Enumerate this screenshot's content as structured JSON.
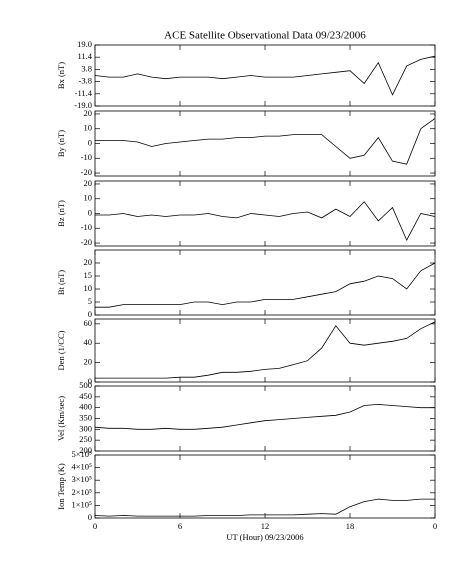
{
  "chart_data": [
    {
      "type": "line",
      "title": "ACE Satellite Observational Data   09/23/2006",
      "ylabel": "Bx (nT)",
      "color": "#000000",
      "x": [
        0,
        1,
        2,
        3,
        4,
        5,
        6,
        7,
        8,
        9,
        10,
        11,
        12,
        13,
        14,
        15,
        16,
        17,
        18,
        19,
        20,
        21,
        22,
        23,
        24
      ],
      "values": [
        0,
        -1,
        -1,
        1,
        -1,
        -2,
        -1,
        -1,
        -1,
        -2,
        -1,
        0,
        -1,
        -1,
        -1,
        0,
        1,
        2,
        3,
        -5,
        8,
        -12,
        6,
        10,
        12
      ],
      "xlim": [
        0,
        24
      ],
      "ylim": [
        -19,
        19
      ],
      "yticks": [
        {
          "value": -19,
          "label": "-19.0"
        },
        -11.4,
        -3.8,
        3.8,
        11.4,
        {
          "value": 19,
          "label": "19.0"
        }
      ]
    },
    {
      "type": "line",
      "ylabel": "By (nT)",
      "color": "#000000",
      "x": [
        0,
        1,
        2,
        3,
        4,
        5,
        6,
        7,
        8,
        9,
        10,
        11,
        12,
        13,
        14,
        15,
        16,
        17,
        18,
        19,
        20,
        21,
        22,
        23,
        24
      ],
      "values": [
        2,
        2,
        2,
        1,
        -2,
        0,
        1,
        2,
        3,
        3,
        4,
        4,
        5,
        5,
        6,
        6,
        6,
        -2,
        -10,
        -8,
        4,
        -12,
        -14,
        10,
        17
      ],
      "xlim": [
        0,
        24
      ],
      "ylim": [
        -22,
        22
      ],
      "yticks": [
        -20,
        -10,
        0,
        10,
        20
      ]
    },
    {
      "type": "line",
      "ylabel": "Bz (nT)",
      "color": "#000000",
      "x": [
        0,
        1,
        2,
        3,
        4,
        5,
        6,
        7,
        8,
        9,
        10,
        11,
        12,
        13,
        14,
        15,
        16,
        17,
        18,
        19,
        20,
        21,
        22,
        23,
        24
      ],
      "values": [
        -1,
        -1,
        0,
        -2,
        -1,
        -2,
        -1,
        -1,
        0,
        -2,
        -3,
        0,
        -1,
        -2,
        0,
        1,
        -3,
        3,
        -2,
        8,
        -5,
        4,
        -18,
        0,
        -2
      ],
      "xlim": [
        0,
        24
      ],
      "ylim": [
        -22,
        22
      ],
      "yticks": [
        -20,
        -10,
        0,
        10,
        20
      ]
    },
    {
      "type": "line",
      "ylabel": "Bt (nT)",
      "color": "#000000",
      "x": [
        0,
        1,
        2,
        3,
        4,
        5,
        6,
        7,
        8,
        9,
        10,
        11,
        12,
        13,
        14,
        15,
        16,
        17,
        18,
        19,
        20,
        21,
        22,
        23,
        24
      ],
      "values": [
        3,
        3,
        4,
        4,
        4,
        4,
        4,
        5,
        5,
        4,
        5,
        5,
        6,
        6,
        6,
        7,
        8,
        9,
        12,
        13,
        15,
        14,
        10,
        17,
        20
      ],
      "xlim": [
        0,
        24
      ],
      "ylim": [
        0,
        25
      ],
      "yticks": [
        0,
        5,
        10,
        15,
        20
      ]
    },
    {
      "type": "line",
      "ylabel": "Den (1/CC)",
      "color": "#000000",
      "x": [
        0,
        1,
        2,
        3,
        4,
        5,
        6,
        7,
        8,
        9,
        10,
        11,
        12,
        13,
        14,
        15,
        16,
        17,
        18,
        19,
        20,
        21,
        22,
        23,
        24
      ],
      "values": [
        4,
        4,
        4,
        4,
        4,
        4,
        5,
        5,
        7,
        10,
        10,
        11,
        13,
        14,
        18,
        22,
        35,
        58,
        40,
        38,
        40,
        42,
        45,
        55,
        62
      ],
      "xlim": [
        0,
        24
      ],
      "ylim": [
        0,
        65
      ],
      "yticks": [
        0,
        20,
        40,
        60
      ]
    },
    {
      "type": "line",
      "ylabel": "Vel (Km/sec)",
      "color": "#000000",
      "x": [
        0,
        1,
        2,
        3,
        4,
        5,
        6,
        7,
        8,
        9,
        10,
        11,
        12,
        13,
        14,
        15,
        16,
        17,
        18,
        19,
        20,
        21,
        22,
        23,
        24
      ],
      "values": [
        310,
        305,
        305,
        300,
        300,
        305,
        300,
        300,
        305,
        310,
        320,
        330,
        340,
        345,
        350,
        355,
        360,
        365,
        380,
        410,
        415,
        410,
        405,
        400,
        400
      ],
      "xlim": [
        0,
        24
      ],
      "ylim": [
        200,
        500
      ],
      "yticks": [
        200,
        250,
        300,
        350,
        400,
        450,
        500
      ]
    },
    {
      "type": "line",
      "ylabel": "Ion Temp (K)",
      "xlabel": "UT (Hour)  09/23/2006",
      "color": "#000000",
      "x": [
        0,
        1,
        2,
        3,
        4,
        5,
        6,
        7,
        8,
        9,
        10,
        11,
        12,
        13,
        14,
        15,
        16,
        17,
        18,
        19,
        20,
        21,
        22,
        23,
        24
      ],
      "values": [
        20000,
        15000,
        20000,
        15000,
        15000,
        15000,
        15000,
        15000,
        20000,
        20000,
        20000,
        25000,
        25000,
        25000,
        25000,
        30000,
        35000,
        30000,
        90000,
        130000,
        150000,
        140000,
        140000,
        150000,
        150000
      ],
      "xlim": [
        0,
        24
      ],
      "ylim": [
        0,
        500000
      ],
      "yticks": [
        0,
        {
          "value": 100000,
          "label": "1×10⁵"
        },
        {
          "value": 200000,
          "label": "2×10⁵"
        },
        {
          "value": 300000,
          "label": "3×10⁵"
        },
        {
          "value": 400000,
          "label": "4×10⁵"
        },
        {
          "value": 500000,
          "label": "5×10⁵"
        }
      ],
      "xticks": [
        0,
        6,
        12,
        18,
        {
          "value": 24,
          "label": "0"
        }
      ]
    }
  ]
}
